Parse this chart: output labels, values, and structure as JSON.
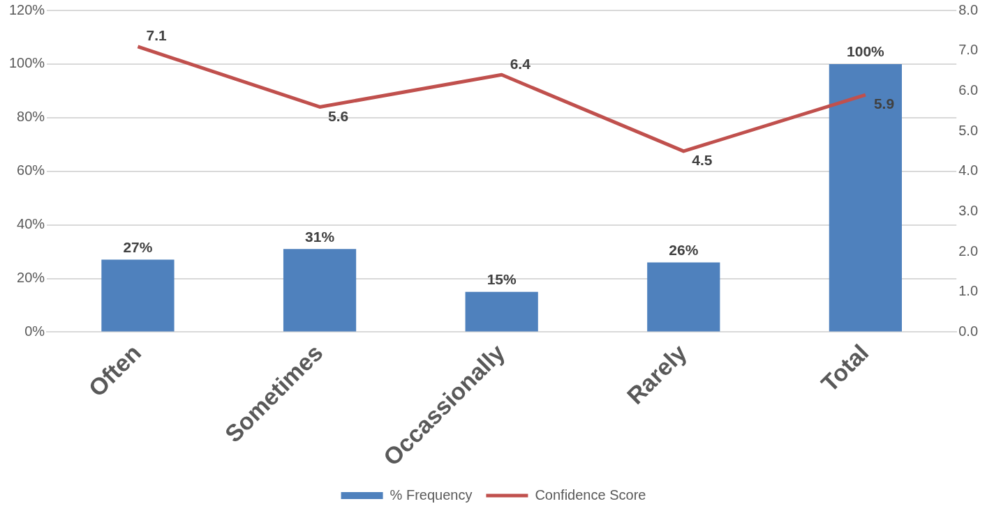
{
  "chart_data": {
    "type": "bar",
    "categories": [
      "Often",
      "Sometimes",
      "Occassionally",
      "Rarely",
      "Total"
    ],
    "series": [
      {
        "name": "% Frequency",
        "color": "#4f81bd",
        "values": [
          27,
          31,
          15,
          26,
          100
        ],
        "value_labels": [
          "27%",
          "31%",
          "15%",
          "26%",
          "100%"
        ]
      },
      {
        "name": "Confidence Score",
        "type": "line",
        "axis": "y2",
        "color": "#c0504d",
        "values": [
          7.1,
          5.6,
          6.4,
          4.5,
          5.9
        ],
        "value_labels": [
          "7.1",
          "5.6",
          "6.4",
          "4.5",
          "5.9"
        ]
      }
    ],
    "ylim": [
      0,
      120
    ],
    "yticks": [
      {
        "value": 0,
        "label": "0%"
      },
      {
        "value": 20,
        "label": "20%"
      },
      {
        "value": 40,
        "label": "40%"
      },
      {
        "value": 60,
        "label": "60%"
      },
      {
        "value": 80,
        "label": "80%"
      },
      {
        "value": 100,
        "label": "100%"
      },
      {
        "value": 120,
        "label": "120%"
      }
    ],
    "y2lim": [
      0,
      8
    ],
    "y2ticks": [
      {
        "value": 0,
        "label": "0.0"
      },
      {
        "value": 1,
        "label": "1.0"
      },
      {
        "value": 2,
        "label": "2.0"
      },
      {
        "value": 3,
        "label": "3.0"
      },
      {
        "value": 4,
        "label": "4.0"
      },
      {
        "value": 5,
        "label": "5.0"
      },
      {
        "value": 6,
        "label": "6.0"
      },
      {
        "value": 7,
        "label": "7.0"
      },
      {
        "value": 8,
        "label": "8.0"
      }
    ],
    "grid": "y",
    "legend": "bottom"
  }
}
